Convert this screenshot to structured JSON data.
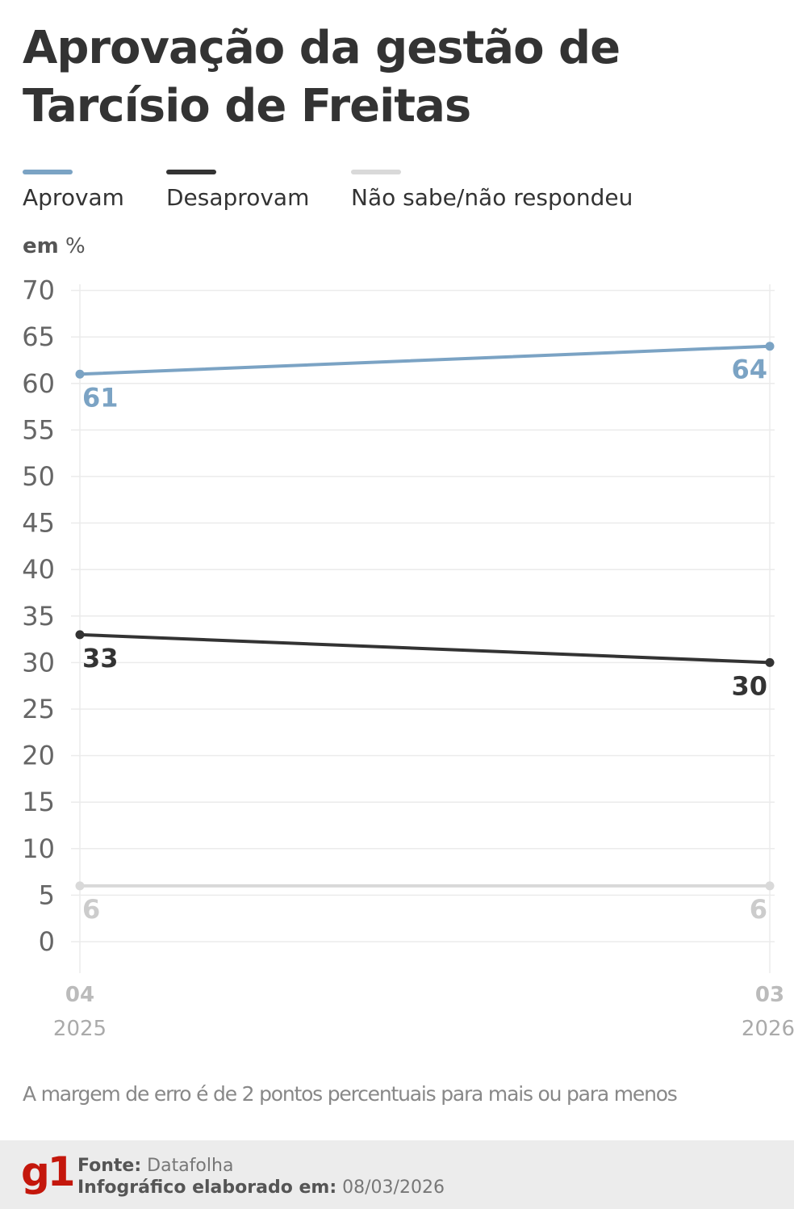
{
  "title": "Aprovação da gestão de Tarcísio de Freitas",
  "legend": [
    {
      "label": "Aprovam",
      "color": "#7ba3c4"
    },
    {
      "label": "Desaprovam",
      "color": "#333333"
    },
    {
      "label": "Não sabe/não respondeu",
      "color": "#d9d9d9"
    }
  ],
  "unit": {
    "prefix": "em",
    "symbol": "%"
  },
  "chart_data": {
    "type": "line",
    "x": [
      {
        "month": "04",
        "year": "2025"
      },
      {
        "month": "03",
        "year": "2026"
      }
    ],
    "ylim": [
      0,
      70
    ],
    "yticks": [
      0,
      5,
      10,
      15,
      20,
      25,
      30,
      35,
      40,
      45,
      50,
      55,
      60,
      65,
      70
    ],
    "grid": true,
    "series": [
      {
        "name": "Aprovam",
        "color": "#7ba3c4",
        "label_color": "#7ba3c4",
        "values": [
          61,
          64
        ],
        "label_position": [
          "below",
          "below"
        ]
      },
      {
        "name": "Desaprovam",
        "color": "#333333",
        "label_color": "#333333",
        "values": [
          33,
          30
        ],
        "label_position": [
          "below",
          "below"
        ]
      },
      {
        "name": "Não sabe/não respondeu",
        "color": "#d9d9d9",
        "label_color": "#cccccc",
        "values": [
          6,
          6
        ],
        "label_position": [
          "below",
          "below"
        ]
      }
    ]
  },
  "note": "A margem de erro é de 2 pontos percentuais para mais ou para menos",
  "footer": {
    "logo": "g1",
    "source_label": "Fonte:",
    "source_value": "Datafolha",
    "made_label": "Infográfico elaborado em:",
    "made_value": "08/03/2026"
  }
}
